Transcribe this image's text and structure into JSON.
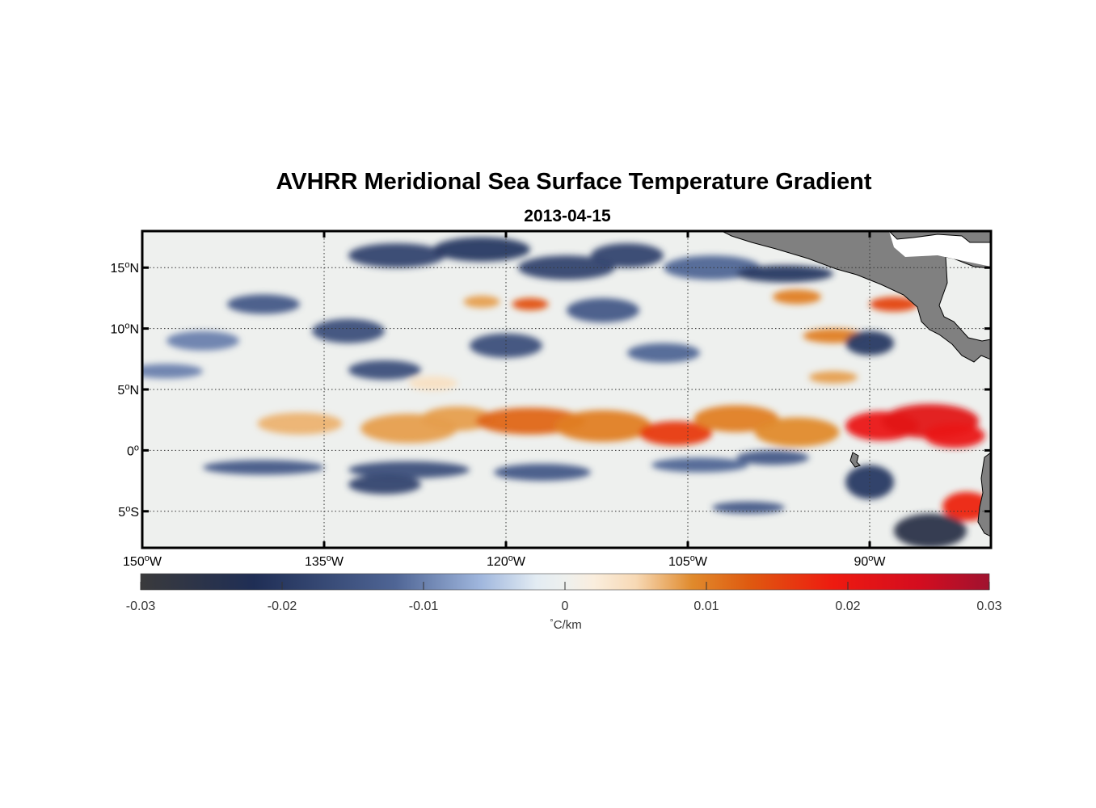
{
  "title": "AVHRR Meridional Sea Surface Temperature Gradient",
  "subtitle": "2013-04-15",
  "map": {
    "lon_range": [
      -150,
      -80
    ],
    "lat_range": [
      -8,
      18
    ],
    "grid": "dotted",
    "lon_ticks": [
      {
        "value": -150,
        "num": "150",
        "hemi": "W"
      },
      {
        "value": -135,
        "num": "135",
        "hemi": "W"
      },
      {
        "value": -120,
        "num": "120",
        "hemi": "W"
      },
      {
        "value": -105,
        "num": "105",
        "hemi": "W"
      },
      {
        "value": -90,
        "num": "90",
        "hemi": "W"
      }
    ],
    "lat_ticks": [
      {
        "value": 15,
        "num": "15",
        "hemi": "N"
      },
      {
        "value": 10,
        "num": "10",
        "hemi": "N"
      },
      {
        "value": 5,
        "num": "5",
        "hemi": "N"
      },
      {
        "value": 0,
        "num": "0",
        "hemi": ""
      },
      {
        "value": -5,
        "num": "5",
        "hemi": "S"
      }
    ],
    "degree_symbol": "o",
    "land_color": "#808080",
    "features": [
      {
        "name": "equatorial warm band",
        "sign": "positive",
        "lon": [
          -140,
          -82
        ],
        "lat": [
          0,
          4
        ]
      },
      {
        "name": "eastern strong front",
        "sign": "positive",
        "lon": [
          -92,
          -80
        ],
        "lat": [
          0,
          3
        ]
      },
      {
        "name": "southern cold band",
        "sign": "negative",
        "lon": [
          -150,
          -95
        ],
        "lat": [
          -3,
          -1
        ]
      },
      {
        "name": "northern eddy field",
        "sign": "negative",
        "lon": [
          -150,
          -100
        ],
        "lat": [
          6,
          18
        ]
      }
    ]
  },
  "colorbar": {
    "ticks": [
      {
        "value": -0.03,
        "label": "-0.03"
      },
      {
        "value": -0.02,
        "label": "-0.02"
      },
      {
        "value": -0.01,
        "label": "-0.01"
      },
      {
        "value": 0,
        "label": "0"
      },
      {
        "value": 0.01,
        "label": "0.01"
      },
      {
        "value": 0.02,
        "label": "0.02"
      },
      {
        "value": 0.03,
        "label": "0.03"
      }
    ],
    "range": [
      -0.03,
      0.03
    ],
    "units_symbol": "°",
    "units_text": "C/km",
    "colors": [
      {
        "value": -0.03,
        "color": "#3a3a3c"
      },
      {
        "value": -0.022,
        "color": "#1f2e55"
      },
      {
        "value": -0.012,
        "color": "#4f6595"
      },
      {
        "value": -0.006,
        "color": "#9fb6dd"
      },
      {
        "value": -0.002,
        "color": "#e3ecf3"
      },
      {
        "value": 0.0,
        "color": "#eef0ee"
      },
      {
        "value": 0.002,
        "color": "#faeede"
      },
      {
        "value": 0.005,
        "color": "#f7d9b5"
      },
      {
        "value": 0.009,
        "color": "#e08a2c"
      },
      {
        "value": 0.013,
        "color": "#df5a10"
      },
      {
        "value": 0.019,
        "color": "#ee1a10"
      },
      {
        "value": 0.025,
        "color": "#d40d1f"
      },
      {
        "value": 0.03,
        "color": "#a0122f"
      }
    ]
  }
}
